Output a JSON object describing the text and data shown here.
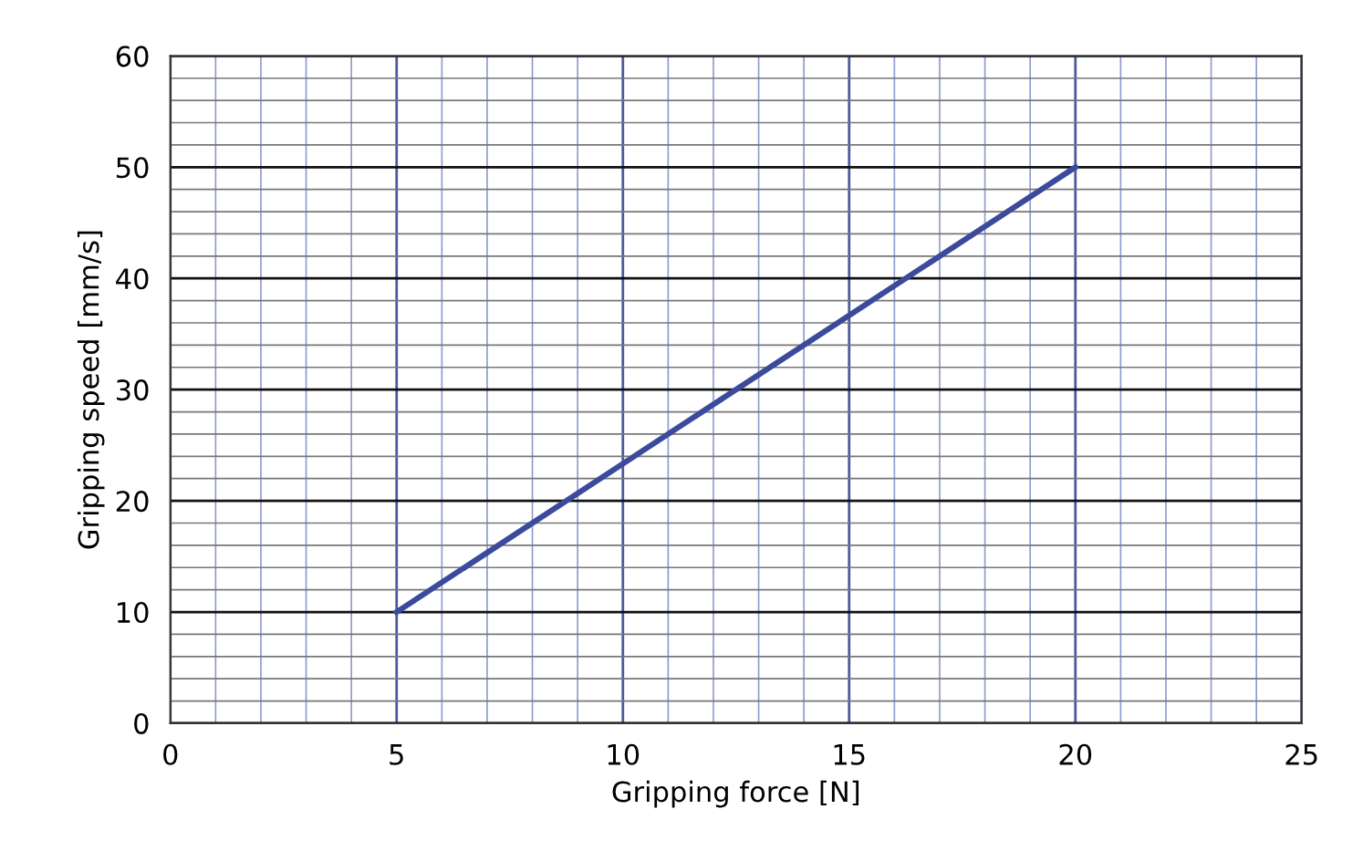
{
  "chart_data": {
    "type": "line",
    "xlabel": "Gripping force [N]",
    "ylabel": "Gripping speed [mm/s]",
    "x": [
      5,
      20
    ],
    "series": [
      {
        "color": "#3b4a9b",
        "values": [
          10,
          50
        ]
      }
    ],
    "xlim": [
      0,
      25
    ],
    "ylim": [
      0,
      60
    ],
    "xticks": [
      0,
      {
        "value": 1,
        "label": null
      },
      {
        "value": 2,
        "label": null
      },
      {
        "value": 3,
        "label": null
      },
      {
        "value": 4,
        "label": null
      },
      5,
      {
        "value": 6,
        "label": null
      },
      {
        "value": 7,
        "label": null
      },
      {
        "value": 8,
        "label": null
      },
      {
        "value": 9,
        "label": null
      },
      10,
      {
        "value": 11,
        "label": null
      },
      {
        "value": 12,
        "label": null
      },
      {
        "value": 13,
        "label": null
      },
      {
        "value": 14,
        "label": null
      },
      15,
      {
        "value": 16,
        "label": null
      },
      {
        "value": 17,
        "label": null
      },
      {
        "value": 18,
        "label": null
      },
      {
        "value": 19,
        "label": null
      },
      20,
      {
        "value": 21,
        "label": null
      },
      {
        "value": 22,
        "label": null
      },
      {
        "value": 23,
        "label": null
      },
      {
        "value": 24,
        "label": null
      },
      25
    ],
    "yticks": [
      0,
      {
        "value": 2,
        "label": null
      },
      {
        "value": 4,
        "label": null
      },
      {
        "value": 6,
        "label": null
      },
      {
        "value": 8,
        "label": null
      },
      10,
      {
        "value": 12,
        "label": null
      },
      {
        "value": 14,
        "label": null
      },
      {
        "value": 16,
        "label": null
      },
      {
        "value": 18,
        "label": null
      },
      20,
      {
        "value": 22,
        "label": null
      },
      {
        "value": 24,
        "label": null
      },
      {
        "value": 26,
        "label": null
      },
      {
        "value": 28,
        "label": null
      },
      30,
      {
        "value": 32,
        "label": null
      },
      {
        "value": 34,
        "label": null
      },
      {
        "value": 36,
        "label": null
      },
      {
        "value": 38,
        "label": null
      },
      40,
      {
        "value": 42,
        "label": null
      },
      {
        "value": 44,
        "label": null
      },
      {
        "value": 46,
        "label": null
      },
      {
        "value": 48,
        "label": null
      },
      50,
      {
        "value": 52,
        "label": null
      },
      {
        "value": 54,
        "label": null
      },
      {
        "value": 56,
        "label": null
      },
      {
        "value": 58,
        "label": null
      },
      60
    ],
    "grid": true,
    "marker": "none",
    "line_style": "solid"
  }
}
